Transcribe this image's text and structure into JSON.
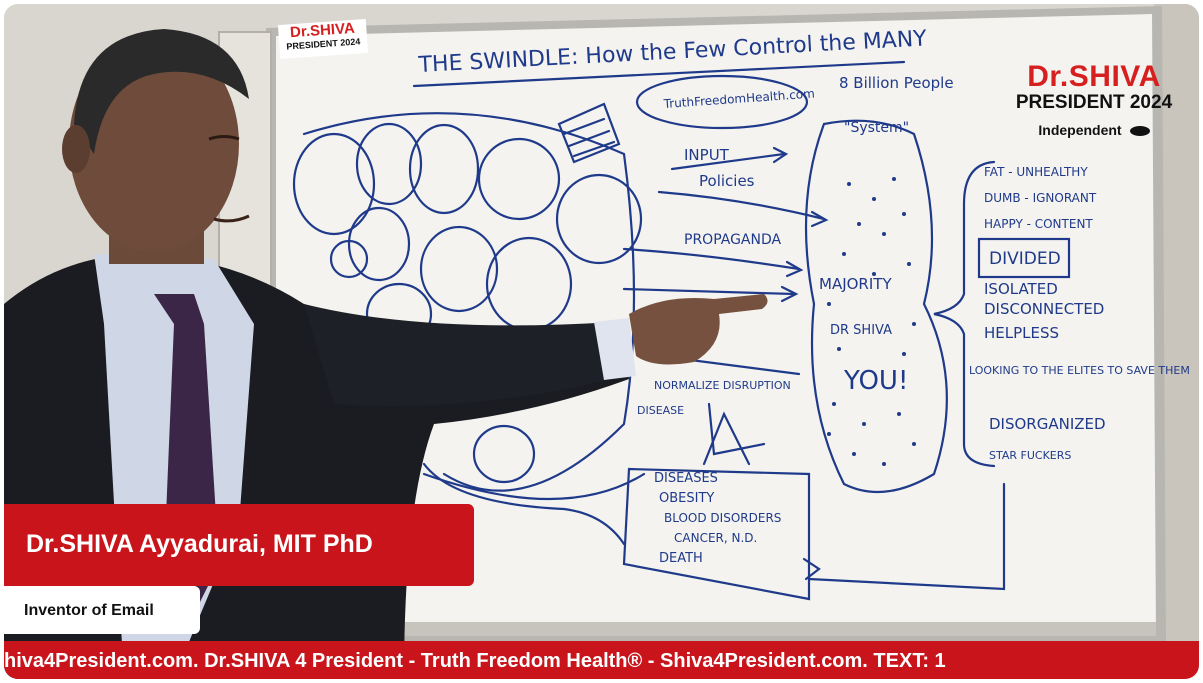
{
  "overlay": {
    "top_logo": {
      "name": "Dr.SHIVA",
      "line": "PRESIDENT 2024",
      "affiliation": "Independent"
    },
    "board_logo": {
      "name": "Dr.SHIVA",
      "line": "PRESIDENT 2024"
    },
    "lower_third": {
      "name": "Dr.SHIVA Ayyadurai, MIT PhD",
      "subtitle": "Inventor of Email"
    },
    "ticker": {
      "text": "hiva4President.com. Dr.SHIVA 4 President - Truth Freedom Health® - Shiva4President.com. TEXT: 1"
    }
  },
  "whiteboard": {
    "title": "THE SWINDLE: How the Few Control the MANY",
    "labels": {
      "site": "TruthFreedomHealth.com",
      "population": "8 Billion People",
      "system": "\"System\"",
      "input": "INPUT",
      "policies": "Policies",
      "propaganda": "PROPAGANDA",
      "majority": "MAJORITY",
      "dr_shiva": "DR SHIVA",
      "you": "YOU!",
      "normalize": "NORMALIZE DISRUPTION",
      "disease_label": "DISEASE",
      "list": [
        "FAT - UNHEALTHY",
        "DUMB - IGNORANT",
        "HAPPY - CONTENT",
        "DIVIDED",
        "ISOLATED",
        "DISCONNECTED",
        "HELPLESS",
        "LOOKING TO THE ELITES TO SAVE THEM",
        "DISORGANIZED",
        "STAR FUCKERS"
      ],
      "disease_box": [
        "DISEASES",
        "OBESITY",
        "BLOOD DISORDERS",
        "CANCER, N.D.",
        "DEATH"
      ]
    }
  },
  "colors": {
    "brand_red": "#c8141a",
    "logo_red": "#d62020",
    "ink_blue": "#1f3a8a",
    "board": "#f4f3ef"
  }
}
